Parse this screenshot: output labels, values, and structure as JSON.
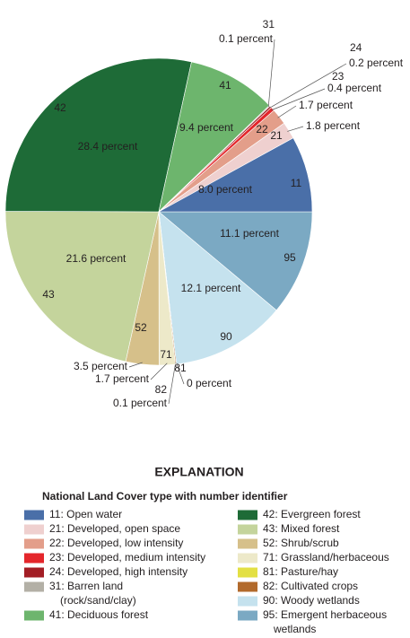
{
  "chart_data": {
    "type": "pie",
    "categories": [
      "95",
      "90",
      "81",
      "82",
      "71",
      "52",
      "43",
      "42",
      "41",
      "31",
      "24",
      "23",
      "22",
      "21",
      "11"
    ],
    "values": [
      11.1,
      12.1,
      0,
      0.1,
      1.7,
      3.5,
      21.6,
      28.4,
      9.4,
      0.1,
      0.2,
      0.4,
      1.7,
      1.8,
      8.0
    ],
    "value_labels": [
      "11.1 percent",
      "12.1 percent",
      "0 percent",
      "0.1 percent",
      "1.7 percent",
      "3.5 percent",
      "21.6 percent",
      "28.4 percent",
      "9.4 percent",
      "0.1 percent",
      "0.2 percent",
      "0.4 percent",
      "1.7 percent",
      "1.8 percent",
      "8.0 percent"
    ],
    "colors": [
      "#7ba9c3",
      "#c5e2ee",
      "#e3e043",
      "#b26a2c",
      "#ede9c9",
      "#d6c08a",
      "#c4d49c",
      "#1e6b37",
      "#6db56d",
      "#b3b0a6",
      "#a31e25",
      "#e4262b",
      "#e39e8a",
      "#efd0cf",
      "#4a6fa8"
    ],
    "legend_title": "EXPLANATION",
    "legend_subtitle": "National Land Cover type with number identifier",
    "legend_labels": [
      [
        "95: Emergent herbaceous",
        "wetlands"
      ],
      [
        "90: Woody wetlands"
      ],
      [
        "81: Pasture/hay"
      ],
      [
        "82: Cultivated crops"
      ],
      [
        "71: Grassland/herbaceous"
      ],
      [
        "52: Shrub/scrub"
      ],
      [
        "43: Mixed forest"
      ],
      [
        "42: Evergreen forest"
      ],
      [
        "41: Deciduous forest"
      ],
      [
        "31: Barren land",
        "(rock/sand/clay)"
      ],
      [
        "24: Developed, high intensity"
      ],
      [
        "23: Developed, medium intensity"
      ],
      [
        "22: Developed, low intensity"
      ],
      [
        "21: Developed, open space"
      ],
      [
        "11: Open water"
      ]
    ]
  }
}
